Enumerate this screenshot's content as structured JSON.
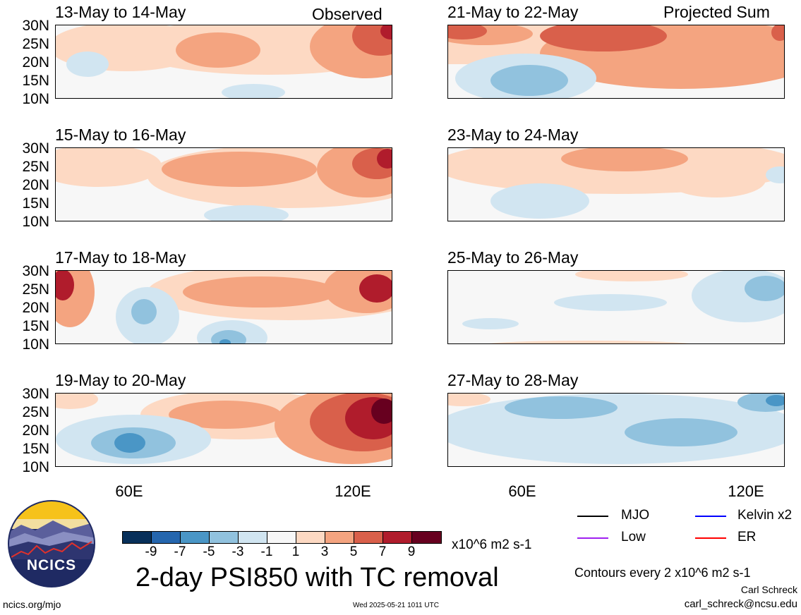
{
  "header": {
    "left_label": "Observed",
    "right_label": "Projected Sum"
  },
  "panels": [
    {
      "title": "13-May to 14-May"
    },
    {
      "title": "15-May to 16-May"
    },
    {
      "title": "17-May to 18-May"
    },
    {
      "title": "19-May to 20-May"
    },
    {
      "title": "21-May to 22-May"
    },
    {
      "title": "23-May to 24-May"
    },
    {
      "title": "25-May to 26-May"
    },
    {
      "title": "27-May to 28-May"
    }
  ],
  "lat_labels": [
    "30N",
    "25N",
    "20N",
    "15N",
    "10N"
  ],
  "lon_labels": [
    "60E",
    "120E"
  ],
  "colorbar": {
    "ticks": [
      "-9",
      "-7",
      "-5",
      "-3",
      "-1",
      "1",
      "3",
      "5",
      "7",
      "9"
    ],
    "colors": [
      "#08305a",
      "#2566ae",
      "#4a96c6",
      "#91c2de",
      "#d1e5f1",
      "#f7f7f7",
      "#fdd9c3",
      "#f4a480",
      "#d9604b",
      "#b01c2c",
      "#67001f"
    ],
    "units": "x10^6 m2 s-1"
  },
  "title": "2-day PSI850 with TC removal",
  "legend": [
    {
      "label": "MJO",
      "color": "#000000"
    },
    {
      "label": "Kelvin x2",
      "color": "#0000ff"
    },
    {
      "label": "Low",
      "color": "#a020f0"
    },
    {
      "label": "ER",
      "color": "#ff0000"
    }
  ],
  "contour_note": "Contours every 2 x10^6 m2 s-1",
  "author": "Carl Schreck",
  "email": "carl_schreck@ncsu.edu",
  "url": "ncics.org/mjo",
  "timestamp": "Wed 2025-05-21 1011 UTC",
  "logo_text": "NCICS"
}
